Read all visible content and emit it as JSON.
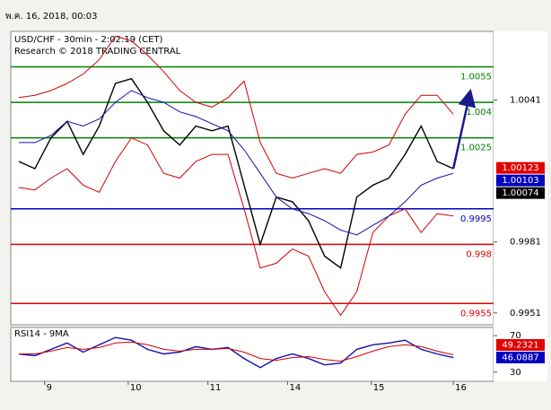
{
  "header": "พ.ค. 16, 2018, 00:03",
  "chart_data": [
    {
      "type": "line",
      "title": "USD/CHF - 30min - 2:02:19 (CET)",
      "subtitle": "Research © 2018 TRADING CENTRAL",
      "x": [
        1,
        3,
        5,
        7,
        9,
        11,
        13,
        15,
        17,
        19,
        21,
        23,
        25,
        27,
        29,
        31,
        33,
        35,
        37,
        39,
        41,
        43,
        45,
        47,
        49,
        51,
        53,
        55
      ],
      "xlim": [
        0,
        60
      ],
      "ylim": [
        0.9946,
        1.007
      ],
      "yticks": [
        1.0041,
        0.9981,
        0.9951
      ],
      "series": [
        {
          "name": "Price",
          "color": "#000000",
          "values": [
            1.0015,
            1.0012,
            1.0025,
            1.0032,
            1.0018,
            1.003,
            1.0048,
            1.005,
            1.004,
            1.0028,
            1.0022,
            1.003,
            1.0028,
            1.003,
            1.0005,
            0.998,
            1.0,
            0.9998,
            0.999,
            0.9975,
            0.997,
            1.0,
            1.0005,
            1.0008,
            1.0018,
            1.003,
            1.0015,
            1.0012
          ]
        },
        {
          "name": "Upper band",
          "color": "#d00000",
          "values": [
            1.0042,
            1.0043,
            1.0045,
            1.0048,
            1.0052,
            1.0058,
            1.0068,
            1.0066,
            1.006,
            1.0053,
            1.0045,
            1.004,
            1.0038,
            1.0042,
            1.0049,
            1.0023,
            1.001,
            1.0008,
            1.001,
            1.0012,
            1.001,
            1.0018,
            1.0019,
            1.0022,
            1.0035,
            1.0043,
            1.0043,
            1.0035
          ]
        },
        {
          "name": "Lower band",
          "color": "#d00000",
          "values": [
            1.0004,
            1.0003,
            1.0008,
            1.0012,
            1.0005,
            1.0002,
            1.0015,
            1.0025,
            1.0022,
            1.001,
            1.0008,
            1.0015,
            1.0018,
            1.0018,
            0.9995,
            0.997,
            0.9972,
            0.9978,
            0.9975,
            0.996,
            0.995,
            0.996,
            0.9985,
            0.9992,
            0.9995,
            0.9985,
            0.9993,
            0.9992
          ]
        },
        {
          "name": "MA",
          "color": "#1010b0",
          "values": [
            1.0023,
            1.0023,
            1.0026,
            1.0032,
            1.003,
            1.0033,
            1.004,
            1.0045,
            1.0042,
            1.004,
            1.0036,
            1.0034,
            1.0031,
            1.0028,
            1.002,
            1.001,
            1.0,
            0.9995,
            0.9993,
            0.999,
            0.9986,
            0.9984,
            0.9988,
            0.9992,
            0.9998,
            1.0005,
            1.0008,
            1.001
          ]
        }
      ],
      "levels": [
        {
          "value": 1.0055,
          "color": "#008000"
        },
        {
          "value": 1.004,
          "color": "#008000"
        },
        {
          "value": 1.0025,
          "color": "#008000"
        },
        {
          "value": 0.9995,
          "color": "#0000c0"
        },
        {
          "value": 0.998,
          "color": "#e00000"
        },
        {
          "value": 0.9955,
          "color": "#e00000"
        }
      ],
      "price_labels": [
        {
          "value": 1.00123,
          "color": "#e00000"
        },
        {
          "value": 1.00103,
          "color": "#0000c0"
        },
        {
          "value": 1.00074,
          "color": "#000000"
        }
      ],
      "forecast": {
        "x": [
          55,
          57
        ],
        "values": [
          1.0012,
          1.0043
        ],
        "color": "#1a1a8c"
      }
    },
    {
      "type": "line",
      "title": "RSI14 - 9MA",
      "x": [
        1,
        3,
        5,
        7,
        9,
        11,
        13,
        15,
        17,
        19,
        21,
        23,
        25,
        27,
        29,
        31,
        33,
        35,
        37,
        39,
        41,
        43,
        45,
        47,
        49,
        51,
        53,
        55
      ],
      "xlim": [
        0,
        60
      ],
      "xticks": [
        {
          "value": 4.2,
          "label": "9"
        },
        {
          "value": 14.6,
          "label": "10"
        },
        {
          "value": 24.5,
          "label": "11"
        },
        {
          "value": 34.4,
          "label": "14"
        },
        {
          "value": 44.8,
          "label": "15"
        },
        {
          "value": 55,
          "label": "16"
        }
      ],
      "ylim": [
        20,
        79
      ],
      "yticks": [
        70,
        30
      ],
      "series": [
        {
          "name": "RSI",
          "color": "#1010b0",
          "values": [
            50,
            48,
            55,
            62,
            52,
            60,
            68,
            65,
            55,
            50,
            52,
            58,
            55,
            57,
            45,
            35,
            45,
            50,
            45,
            38,
            40,
            55,
            60,
            62,
            65,
            55,
            50,
            46
          ]
        },
        {
          "name": "RSI MA",
          "color": "#d00000",
          "values": [
            50,
            50,
            53,
            57,
            55,
            57,
            62,
            63,
            60,
            55,
            53,
            55,
            55,
            56,
            52,
            45,
            43,
            46,
            47,
            44,
            42,
            47,
            53,
            58,
            60,
            58,
            53,
            49
          ]
        }
      ],
      "last_labels": [
        {
          "value": 49.2321,
          "color": "#e00000"
        },
        {
          "value": 46.0887,
          "color": "#0000c0"
        }
      ]
    }
  ]
}
